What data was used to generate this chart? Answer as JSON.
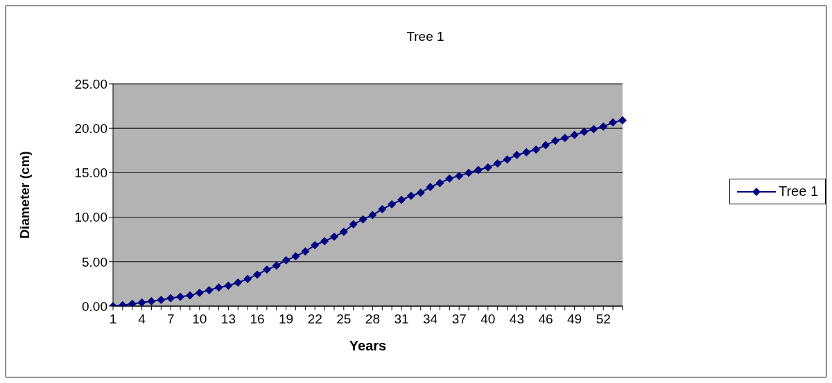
{
  "chart_data": {
    "type": "line",
    "title": "Tree 1",
    "xlabel": "Years",
    "ylabel": "Diameter (cm)",
    "categories": [
      "1",
      null,
      null,
      "4",
      null,
      null,
      "7",
      null,
      null,
      "10",
      null,
      null,
      "13",
      null,
      null,
      "16",
      null,
      null,
      "19",
      null,
      null,
      "22",
      null,
      null,
      "25",
      null,
      null,
      "28",
      null,
      null,
      "31",
      null,
      null,
      "34",
      null,
      null,
      "37",
      null,
      null,
      "40",
      null,
      null,
      "43",
      null,
      null,
      "46",
      null,
      null,
      "49",
      null,
      null,
      "52",
      null,
      null
    ],
    "series": [
      {
        "name": "Tree 1",
        "color": "#000080",
        "values": [
          0,
          0.1,
          0.25,
          0.4,
          0.55,
          0.7,
          0.9,
          1.05,
          1.2,
          1.5,
          1.8,
          2.1,
          2.3,
          2.65,
          3.05,
          3.55,
          4.1,
          4.55,
          5.15,
          5.6,
          6.15,
          6.85,
          7.3,
          7.8,
          8.35,
          9.2,
          9.75,
          10.25,
          10.9,
          11.45,
          11.95,
          12.4,
          12.75,
          13.4,
          13.85,
          14.35,
          14.65,
          15,
          15.3,
          15.6,
          16.05,
          16.5,
          17,
          17.3,
          17.6,
          18.1,
          18.6,
          18.9,
          19.25,
          19.6,
          19.9,
          20.2,
          20.65,
          20.9
        ]
      }
    ],
    "ylim": [
      0,
      25
    ],
    "yticks": [
      {
        "value": 0,
        "label": "0.00"
      },
      {
        "value": 5,
        "label": "5.00"
      },
      {
        "value": 10,
        "label": "10.00"
      },
      {
        "value": 15,
        "label": "15.00"
      },
      {
        "value": 20,
        "label": "20.00"
      },
      {
        "value": 25,
        "label": "25.00"
      }
    ],
    "grid": "y",
    "legend": "right",
    "marker": "diamond",
    "line_style": "solid"
  }
}
